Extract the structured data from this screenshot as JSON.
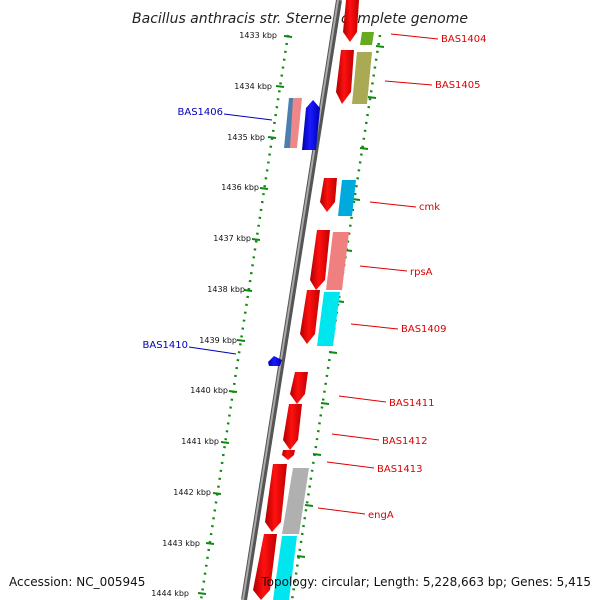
{
  "title": "Bacillus anthracis str. Sterne, complete genome",
  "footer": {
    "accession": "Accession: NC_005945",
    "topology": "Topology: circular; Length: 5,228,663 bp; Genes: 5,415"
  },
  "colors": {
    "forward_label": "#dd0000",
    "reverse_label": "#0000bb",
    "axis_tick": "#118811",
    "backbone": "#888888"
  },
  "ticks": [
    "1433 kbp",
    "1434 kbp",
    "1435 kbp",
    "1436 kbp",
    "1437 kbp",
    "1438 kbp",
    "1439 kbp",
    "1440 kbp",
    "1441 kbp",
    "1442 kbp",
    "1443 kbp",
    "1444 kbp"
  ],
  "genes": [
    {
      "label": "BAS1404",
      "strand": "forward",
      "color": "#ff0000",
      "partner_color": "#66aa22"
    },
    {
      "label": "BAS1405",
      "strand": "forward",
      "color": "#ff0000",
      "partner_color": "#aaaa44"
    },
    {
      "label": "BAS1406",
      "strand": "reverse",
      "color": "#0000ee",
      "partner_color": "#ee8888"
    },
    {
      "label": "cmk",
      "strand": "forward",
      "color": "#ff0000",
      "partner_color": "#00aadd"
    },
    {
      "label": "rpsA",
      "strand": "forward",
      "color": "#ff0000",
      "partner_color": "#f08080"
    },
    {
      "label": "BAS1409",
      "strand": "forward",
      "color": "#ff0000",
      "partner_color": "#00e6ee"
    },
    {
      "label": "BAS1410",
      "strand": "reverse",
      "color": "#0000ee",
      "partner_color": ""
    },
    {
      "label": "BAS1411",
      "strand": "forward",
      "color": "#ff0000",
      "partner_color": ""
    },
    {
      "label": "BAS1412",
      "strand": "forward",
      "color": "#ff0000",
      "partner_color": ""
    },
    {
      "label": "BAS1413",
      "strand": "forward",
      "color": "#ff0000",
      "partner_color": ""
    },
    {
      "label": "engA",
      "strand": "forward",
      "color": "#ff0000",
      "partner_color": "#b0b0b0"
    }
  ]
}
